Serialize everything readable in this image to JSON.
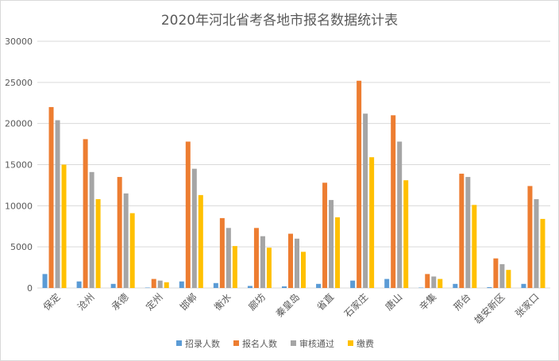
{
  "chart_data": {
    "type": "bar",
    "title": "2020年河北省考各地市报名数据统计表",
    "xlabel": "",
    "ylabel": "",
    "ylim": [
      0,
      30000
    ],
    "yticks": [
      0,
      5000,
      10000,
      15000,
      20000,
      25000,
      30000
    ],
    "grid": true,
    "legend_position": "bottom",
    "categories": [
      "保定",
      "沧州",
      "承德",
      "定州",
      "邯郸",
      "衡水",
      "廊坊",
      "秦皇岛",
      "省直",
      "石家庄",
      "唐山",
      "辛集",
      "邢台",
      "雄安新区",
      "张家口"
    ],
    "series": [
      {
        "name": "招录人数",
        "color": "#5b9bd5",
        "values": [
          1700,
          800,
          500,
          50,
          800,
          600,
          250,
          200,
          500,
          900,
          1100,
          50,
          500,
          100,
          500
        ]
      },
      {
        "name": "报名人数",
        "color": "#ed7d31",
        "values": [
          22000,
          18100,
          13500,
          1100,
          17800,
          8500,
          7300,
          6600,
          12800,
          25200,
          21000,
          1700,
          13900,
          3600,
          12400
        ]
      },
      {
        "name": "审核通过",
        "color": "#a5a5a5",
        "values": [
          20400,
          14100,
          11500,
          900,
          14500,
          7300,
          6300,
          6000,
          10700,
          21200,
          17800,
          1400,
          13500,
          2900,
          10800
        ]
      },
      {
        "name": "缴费",
        "color": "#ffc000",
        "values": [
          15000,
          10800,
          9100,
          700,
          11300,
          5100,
          4900,
          4400,
          8600,
          15900,
          13100,
          1100,
          10100,
          2200,
          8400
        ]
      }
    ]
  }
}
